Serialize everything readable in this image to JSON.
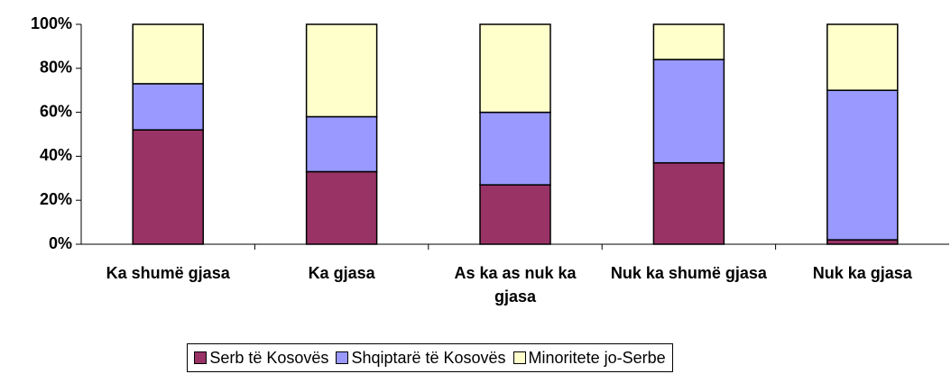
{
  "chart_data": {
    "type": "stacked_bar",
    "categories": [
      "Ka shumë gjasa",
      "Ka gjasa",
      "As ka as nuk ka gjasa",
      "Nuk ka shumë gjasa",
      "Nuk ka gjasa"
    ],
    "series": [
      {
        "name": "Serb të Kosovës",
        "color": "#993366",
        "values": [
          52,
          33,
          27,
          37,
          2
        ]
      },
      {
        "name": "Shqiptarë të Kosovës",
        "color": "#9999ff",
        "values": [
          21,
          25,
          33,
          47,
          68
        ]
      },
      {
        "name": "Minoritete jo-Serbe",
        "color": "#ffffcc",
        "values": [
          27,
          42,
          40,
          16,
          30
        ]
      }
    ],
    "ylim": [
      0,
      100
    ],
    "yticks": [
      {
        "value": 0,
        "label": "0%"
      },
      {
        "value": 20,
        "label": "20%"
      },
      {
        "value": 40,
        "label": "40%"
      },
      {
        "value": 60,
        "label": "60%"
      },
      {
        "value": 80,
        "label": "80%"
      },
      {
        "value": 100,
        "label": "100%"
      }
    ],
    "legend": "bottom",
    "grid": false
  }
}
